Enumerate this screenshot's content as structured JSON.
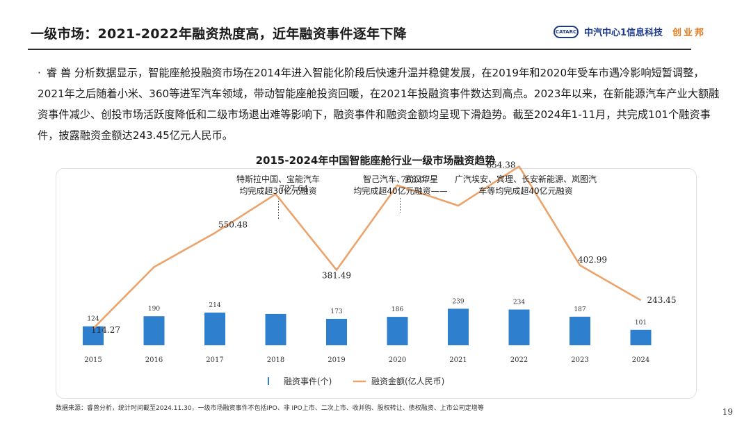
{
  "header": {
    "title": "一级市场：2021-2022年融资热度高，近年融资事件逐年下降",
    "logo_text": "CATARC",
    "brand_name": "中汽中心1信息科技",
    "brand_sub": "创业邦"
  },
  "paragraph": {
    "bullet": "·",
    "text": "睿 兽 分析数据显示，智能座舱投融资市场在2014年进入智能化阶段后快速升温并稳健发展，在2019年和2020年受车市遇冷影响短暂调整，2021年之后随着小米、360等进军汽车领域，带动智能座舱投资回暖，在2021年投融资事件数达到高点。2023年以来，在新能源汽车产业大额融资事件减少、创投市场活跃度降低和二级市场退出难等影响下，融资事件和融资金额均呈现下滑趋势。截至2024年1-11月，共完成101个融资事件，披露融资金额达243.45亿元人民币。"
  },
  "chart_data": {
    "type": "bar",
    "title": "2015-2024年中国智能座舱行业一级市场融资趋势",
    "categories": [
      "2015",
      "2016",
      "2017",
      "2018",
      "2019",
      "2020",
      "2021",
      "2022",
      "2023",
      "2024"
    ],
    "series": [
      {
        "name": "融资事件(个)",
        "type": "bar",
        "values": [
          124,
          190,
          214,
          205,
          173,
          186,
          239,
          234,
          187,
          101
        ],
        "labels": [
          "124",
          "190",
          "214",
          "",
          "173",
          "186",
          "239",
          "234",
          "187",
          "101"
        ]
      },
      {
        "name": "融资金额(亿人民币)",
        "type": "line",
        "values": [
          114.27,
          395,
          550.48,
          727.64,
          381.49,
          768.07,
          675,
          854.38,
          402.99,
          243.45
        ],
        "labels": [
          "114.27",
          "",
          "550.48",
          "727.64",
          "381.49",
          "768.07",
          "",
          "854.38",
          "402.99",
          "243.45"
        ]
      }
    ],
    "colors": {
      "bar": "#2f7fcf",
      "line": "#eba36b"
    },
    "annotations": [
      {
        "category": "2018",
        "lines": [
          "特斯拉中国、宝能汽车",
          "均完成超30亿元融资"
        ]
      },
      {
        "category": "2020",
        "lines": [
          "智己汽车、武汉华星",
          "均完成超40亿元融资——"
        ]
      },
      {
        "category": "2022",
        "lines": [
          "广汽埃安、宾理、长安新能源、岚图汽",
          "车等均完成超40亿元融资"
        ]
      }
    ],
    "legend": "bottom",
    "grid": false
  },
  "footer": {
    "source": "数据来源：睿兽分析，统计时间截至2024.11.30，一级市场融资事件不包括IPO、非 IPO上市、二次上市、收并购、股权转让、债权融资、上市公司定增等",
    "page": "19"
  }
}
